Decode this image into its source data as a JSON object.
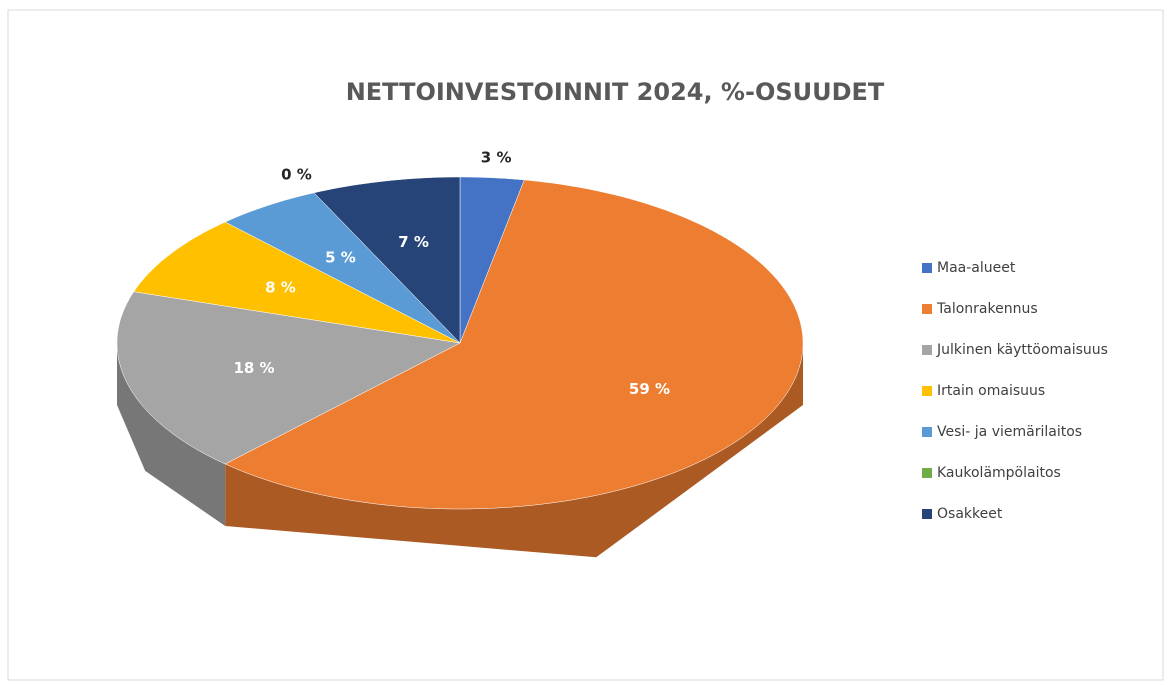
{
  "chart_data": {
    "type": "pie3d",
    "title": "NETTOINVESTOINNIT 2024, %-OSUUDET",
    "categories": [
      "Maa-alueet",
      "Talonrakennus",
      "Julkinen käyttöomaisuus",
      "Irtain omaisuus",
      "Vesi- ja viemärilaitos",
      "Kaukolämpölaitos",
      "Osakkeet"
    ],
    "values": [
      3,
      59,
      18,
      8,
      5,
      0,
      7
    ],
    "value_labels": [
      "3 %",
      "59 %",
      "18 %",
      "8 %",
      "5 %",
      "0 %",
      "7 %"
    ],
    "colors": [
      "#4472c4",
      "#ed7d31",
      "#a5a5a5",
      "#ffc000",
      "#5b9bd5",
      "#70ad47",
      "#264478"
    ],
    "legend": "right"
  }
}
